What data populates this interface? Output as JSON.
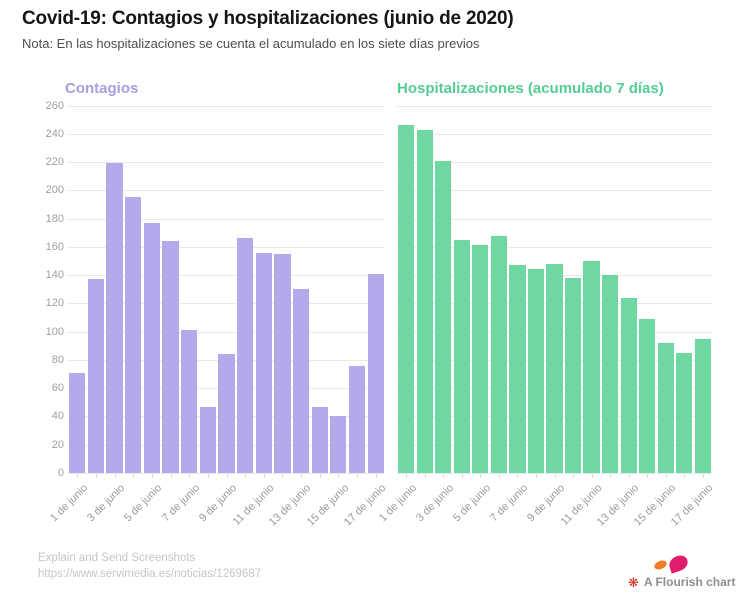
{
  "header": {
    "title": "Covid-19: Contagios y hospitalizaciones (junio de 2020)",
    "subtitle": "Nota: En las hospitalizaciones se cuenta el acumulado en los siete días previos"
  },
  "chart_data": [
    {
      "type": "bar",
      "title": "Contagios",
      "title_color": "#a79fe1",
      "bar_color": "#b3aaec",
      "categories": [
        "1 de junio",
        "2 de junio",
        "3 de junio",
        "4 de junio",
        "5 de junio",
        "6 de junio",
        "7 de junio",
        "8 de junio",
        "9 de junio",
        "10 de junio",
        "11 de junio",
        "12 de junio",
        "13 de junio",
        "14 de junio",
        "15 de junio",
        "16 de junio",
        "17 de junio"
      ],
      "values": [
        71,
        137,
        219,
        195,
        177,
        164,
        101,
        47,
        84,
        166,
        156,
        155,
        130,
        47,
        40,
        76,
        141
      ],
      "xlabel": "",
      "ylabel": "",
      "ylim": [
        0,
        260
      ],
      "ytick_step": 20,
      "ytick_labels": [
        "0",
        "20",
        "40",
        "60",
        "80",
        "100",
        "120",
        "140",
        "160",
        "180",
        "200",
        "220",
        "240",
        "260"
      ],
      "xtick_labels_shown": [
        "1 de junio",
        "3 de junio",
        "5 de junio",
        "7 de junio",
        "9 de junio",
        "11 de junio",
        "13 de junio",
        "15 de junio",
        "17 de junio"
      ],
      "grid": true,
      "legend": "none",
      "y_axis_labels_shown": true
    },
    {
      "type": "bar",
      "title": "Hospitalizaciones (acumulado 7 días)",
      "title_color": "#55cd93",
      "bar_color": "#6fd7a2",
      "categories": [
        "1 de junio",
        "2 de junio",
        "3 de junio",
        "4 de junio",
        "5 de junio",
        "6 de junio",
        "7 de junio",
        "8 de junio",
        "9 de junio",
        "10 de junio",
        "11 de junio",
        "12 de junio",
        "13 de junio",
        "14 de junio",
        "15 de junio",
        "16 de junio",
        "17 de junio"
      ],
      "values": [
        246,
        243,
        221,
        165,
        161,
        168,
        147,
        144,
        148,
        138,
        150,
        140,
        124,
        109,
        92,
        85,
        95
      ],
      "xlabel": "",
      "ylabel": "",
      "ylim": [
        0,
        260
      ],
      "ytick_step": 20,
      "ytick_labels": [
        "0",
        "20",
        "40",
        "60",
        "80",
        "100",
        "120",
        "140",
        "160",
        "180",
        "200",
        "220",
        "240",
        "260"
      ],
      "xtick_labels_shown": [
        "1 de junio",
        "3 de junio",
        "5 de junio",
        "7 de junio",
        "9 de junio",
        "11 de junio",
        "13 de junio",
        "15 de junio",
        "17 de junio"
      ],
      "grid": true,
      "legend": "none",
      "y_axis_labels_shown": false
    }
  ],
  "footer": {
    "line1": "Explain and Send Screenshots",
    "line2": "https://www.servimedia.es/noticias/1269687"
  },
  "attribution": {
    "label": "A Flourish chart",
    "flower_icon": "❋",
    "flower_color": "#cf2b1d",
    "logo_petal_orange_color": "#ef7d23",
    "logo_petal_pink_color": "#e21c6d"
  }
}
